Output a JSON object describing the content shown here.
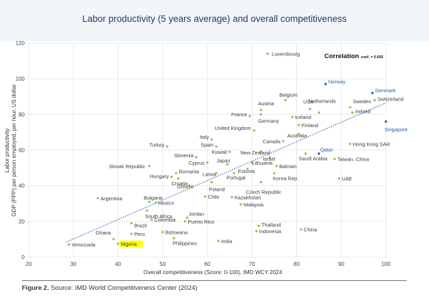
{
  "chart_data": {
    "type": "scatter",
    "title": "Labor productivity (5 years average) and overall competitiveness",
    "xlabel": "Overall competitiveness (Score: 0-100), IMD WCY 2024",
    "ylabel": "GDP (PPP) per person employed, per hour, US dollar",
    "ylabel_prefix": "Labor  productivity",
    "xlim": [
      20,
      100
    ],
    "ylim": [
      0,
      120
    ],
    "xticks": [
      20,
      30,
      40,
      50,
      60,
      70,
      80,
      90,
      100
    ],
    "yticks": [
      0,
      20,
      40,
      60,
      80,
      100,
      120
    ],
    "grid": true,
    "annotation_main": "Correlation",
    "annotation_sub": "coef. = 0.692",
    "trendline": {
      "x1": 28.5,
      "y1": 8.5,
      "x2": 100,
      "y2": 86.5,
      "style": "dotted"
    },
    "points": [
      {
        "label": "Luxembourg",
        "x": 73.5,
        "y": 114,
        "color": "green"
      },
      {
        "label": "Norway",
        "x": 86.5,
        "y": 97,
        "color": "blue"
      },
      {
        "label": "Denmark",
        "x": 97,
        "y": 92,
        "color": "blue"
      },
      {
        "label": "Switzerland",
        "x": 97.5,
        "y": 88,
        "color": "green"
      },
      {
        "label": "Belgium",
        "x": 77.5,
        "y": 88,
        "color": "green"
      },
      {
        "label": "Netherlands",
        "x": 85,
        "y": 81,
        "color": "green"
      },
      {
        "label": "USA",
        "x": 83,
        "y": 83,
        "color": "green"
      },
      {
        "label": "Austria",
        "x": 72,
        "y": 82.5,
        "color": "green"
      },
      {
        "label": "Sweden",
        "x": 92,
        "y": 84,
        "color": "green"
      },
      {
        "label": "Ireland",
        "x": 92.5,
        "y": 81,
        "color": "green"
      },
      {
        "label": "France",
        "x": 69.5,
        "y": 79,
        "color": "green"
      },
      {
        "label": "Germany",
        "x": 72,
        "y": 80,
        "color": "green"
      },
      {
        "label": "Iceland",
        "x": 79,
        "y": 78.5,
        "color": "green"
      },
      {
        "label": "Finland",
        "x": 80.5,
        "y": 74,
        "color": "green"
      },
      {
        "label": "Singapore",
        "x": 100,
        "y": 76,
        "color": "blue"
      },
      {
        "label": "United Kingdom",
        "x": 70.5,
        "y": 71,
        "color": "green"
      },
      {
        "label": "Australia",
        "x": 80.5,
        "y": 69,
        "color": "green"
      },
      {
        "label": "Italy",
        "x": 61,
        "y": 66,
        "color": "green"
      },
      {
        "label": "Canada",
        "x": 77,
        "y": 65,
        "color": "green"
      },
      {
        "label": "Spain",
        "x": 62,
        "y": 62,
        "color": "green"
      },
      {
        "label": "Turkey",
        "x": 51,
        "y": 62,
        "color": "green"
      },
      {
        "label": "Hong Kong SAR",
        "x": 92,
        "y": 63.5,
        "color": "green"
      },
      {
        "label": "Kuwait",
        "x": 65,
        "y": 59,
        "color": "green"
      },
      {
        "label": "New Zealand",
        "x": 72,
        "y": 59,
        "color": "green"
      },
      {
        "label": "Qatar",
        "x": 85,
        "y": 58,
        "color": "blue"
      },
      {
        "label": "Slovenia",
        "x": 57.5,
        "y": 56,
        "color": "green"
      },
      {
        "label": "Saudi Arabia",
        "x": 82,
        "y": 58,
        "color": "green"
      },
      {
        "label": "Israel",
        "x": 74,
        "y": 56,
        "color": "green"
      },
      {
        "label": "Taiwan, China",
        "x": 88.5,
        "y": 55,
        "color": "green"
      },
      {
        "label": "Cyprus",
        "x": 60,
        "y": 53,
        "color": "green"
      },
      {
        "label": "Japan",
        "x": 64.5,
        "y": 52,
        "color": "green"
      },
      {
        "label": "Lithuania",
        "x": 70,
        "y": 53,
        "color": "green"
      },
      {
        "label": "Slovak Republic",
        "x": 47,
        "y": 51,
        "color": "green"
      },
      {
        "label": "Bahrain",
        "x": 75.5,
        "y": 51,
        "color": "green"
      },
      {
        "label": "Estonia",
        "x": 69,
        "y": 49.5,
        "color": "green"
      },
      {
        "label": "Korea Rep.",
        "x": 75,
        "y": 47,
        "color": "green"
      },
      {
        "label": "Portugal",
        "x": 66,
        "y": 47,
        "color": "green"
      },
      {
        "label": "Romania",
        "x": 53,
        "y": 47,
        "color": "green"
      },
      {
        "label": "Latvia",
        "x": 62,
        "y": 47,
        "color": "green"
      },
      {
        "label": "Hungary",
        "x": 52,
        "y": 45,
        "color": "green"
      },
      {
        "label": "Croatia",
        "x": 53.5,
        "y": 44,
        "color": "green"
      },
      {
        "label": "UAE",
        "x": 89.5,
        "y": 44,
        "color": "green"
      },
      {
        "label": "Poland",
        "x": 61,
        "y": 42,
        "color": "green"
      },
      {
        "label": "Czech Republic",
        "x": 72,
        "y": 42,
        "color": "green"
      },
      {
        "label": "Greece",
        "x": 56,
        "y": 40,
        "color": "green"
      },
      {
        "label": "Argentina",
        "x": 35.5,
        "y": 33,
        "color": "green"
      },
      {
        "label": "Bulgaria",
        "x": 47,
        "y": 31,
        "color": "green"
      },
      {
        "label": "Chile",
        "x": 59.5,
        "y": 34,
        "color": "green"
      },
      {
        "label": "Kazakhstan",
        "x": 65.5,
        "y": 33.5,
        "color": "green"
      },
      {
        "label": "Mexico",
        "x": 48.5,
        "y": 30.5,
        "color": "green"
      },
      {
        "label": "Malaysia",
        "x": 67.5,
        "y": 29.5,
        "color": "green"
      },
      {
        "label": "South Africa",
        "x": 46.5,
        "y": 26,
        "color": "green"
      },
      {
        "label": "Jordan",
        "x": 55.5,
        "y": 22,
        "color": "green"
      },
      {
        "label": "Colombia",
        "x": 47.5,
        "y": 21,
        "color": "green"
      },
      {
        "label": "Puerto Rico",
        "x": 55,
        "y": 20,
        "color": "green"
      },
      {
        "label": "Brazil",
        "x": 43,
        "y": 19,
        "color": "green"
      },
      {
        "label": "Thailand",
        "x": 71.5,
        "y": 17.5,
        "color": "green"
      },
      {
        "label": "China",
        "x": 81,
        "y": 15.5,
        "color": "green"
      },
      {
        "label": "Indonesia",
        "x": 71,
        "y": 14.5,
        "color": "green"
      },
      {
        "label": "Botswana",
        "x": 50,
        "y": 14,
        "color": "green"
      },
      {
        "label": "Peru",
        "x": 43,
        "y": 13,
        "color": "green"
      },
      {
        "label": "Philippines",
        "x": 52.5,
        "y": 10.5,
        "color": "green"
      },
      {
        "label": "Ghana",
        "x": 39,
        "y": 10,
        "color": "green"
      },
      {
        "label": "India",
        "x": 62.5,
        "y": 9,
        "color": "green"
      },
      {
        "label": "Nigeria",
        "x": 40,
        "y": 7.5,
        "color": "green",
        "highlight": true
      },
      {
        "label": "Venezuela",
        "x": 29,
        "y": 7,
        "color": "green"
      }
    ]
  },
  "colors": {
    "green": "#8dc63f",
    "blue": "#1f5fa8",
    "trend": "#2a62b3",
    "highlight": "#ffff00",
    "title": "#1f3a68"
  },
  "caption": {
    "bold": "Figure 2.",
    "text": " Source: IMD World Competitiveness Center (2024)"
  }
}
